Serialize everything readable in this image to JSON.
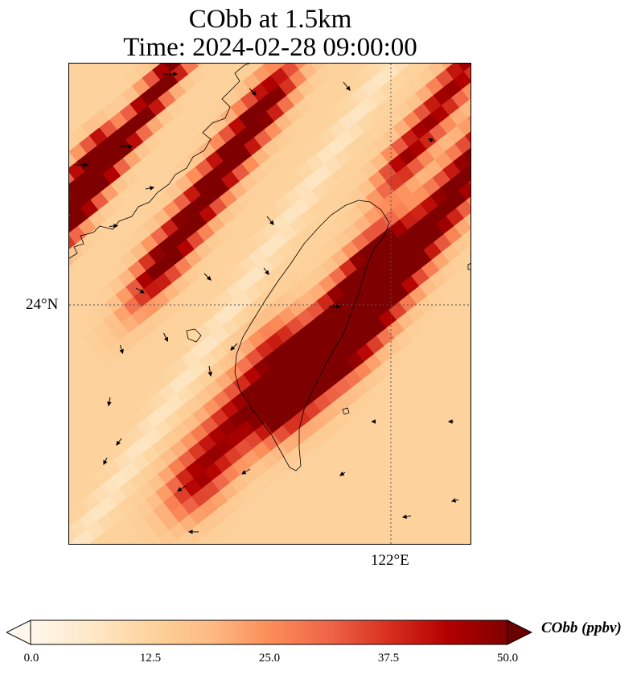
{
  "title": {
    "line1": "CObb at 1.5km",
    "line2": "Time: 2024-02-28 09:00:00"
  },
  "map": {
    "lat_label": "24°N",
    "lon_label": "122°E",
    "gridlines": "dotted",
    "field_variable": "CObb",
    "field_summary": "diagonal SW–NE bands of elevated CObb; maximum (≥50 ppbv) over western Taiwan; several bands of 30–45 ppbv to the NW and east of Taiwan; background ~10–15 ppbv",
    "wind_vectors": "sparse black arrows"
  },
  "colorbar": {
    "label": "CObb (ppbv)",
    "ticks": [
      "0.0",
      "12.5",
      "25.0",
      "37.5",
      "50.0"
    ],
    "min": 0,
    "max": 50,
    "extend": "both",
    "colormap": "OrRd",
    "colors": [
      "#fff7ec",
      "#fee8c8",
      "#fdd49e",
      "#fdbb84",
      "#fc8d59",
      "#ef6548",
      "#d7301f",
      "#b30000",
      "#7f0000"
    ]
  }
}
